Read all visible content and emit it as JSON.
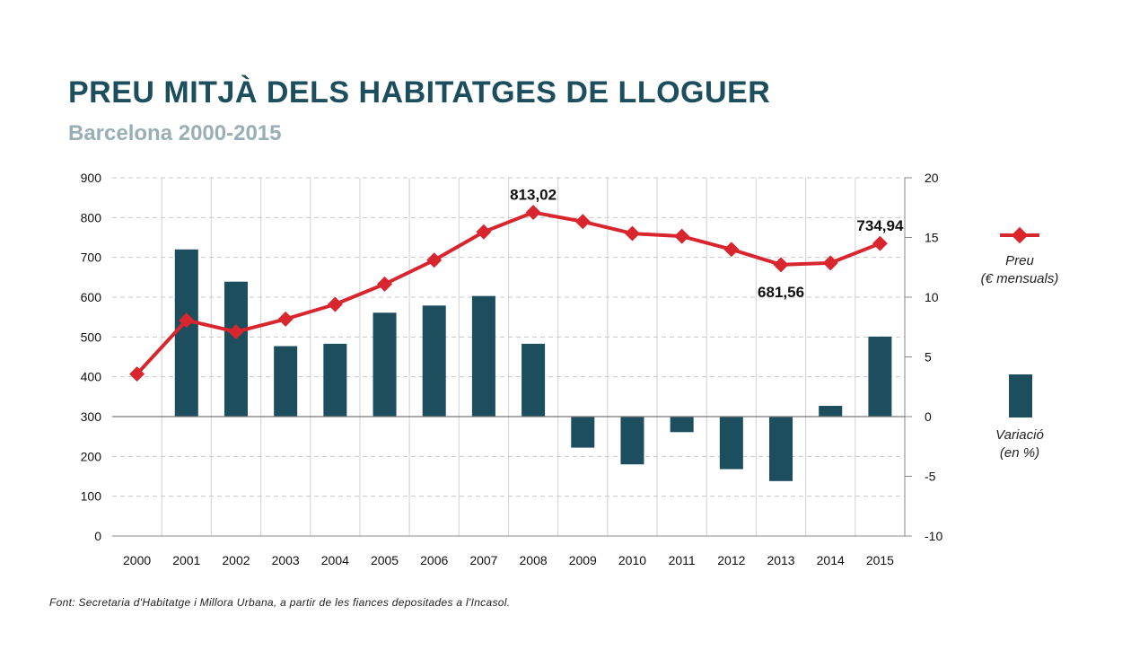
{
  "title": "PREU MITJÀ DELS HABITATGES DE LLOGUER",
  "subtitle": "Barcelona 2000-2015",
  "source": "Font: Secretaria d'Habitatge i Millora Urbana, a partir de les fiances depositades a l'Incasol.",
  "colors": {
    "line": "#d9262e",
    "bar": "#1c4e5e",
    "title": "#1c4e5e",
    "subtitle": "#9aaeb5"
  },
  "legend": {
    "line_label_1": "Preu",
    "line_label_2": "(€ mensuals)",
    "bar_label_1": "Variació",
    "bar_label_2": "(en %)"
  },
  "chart_data": {
    "type": "bar+line",
    "categories": [
      "2000",
      "2001",
      "2002",
      "2003",
      "2004",
      "2005",
      "2006",
      "2007",
      "2008",
      "2009",
      "2010",
      "2011",
      "2012",
      "2013",
      "2014",
      "2015"
    ],
    "series": [
      {
        "name": "Preu (€ mensuals)",
        "type": "line",
        "axis": "left",
        "values": [
          407,
          542,
          513,
          545,
          582,
          633,
          693,
          764,
          813.02,
          790,
          760,
          753,
          720,
          681.56,
          686,
          734.94
        ]
      },
      {
        "name": "Variació (en %)",
        "type": "bar",
        "axis": "right",
        "values": [
          null,
          14.0,
          11.3,
          5.9,
          6.1,
          8.7,
          9.3,
          10.1,
          6.1,
          -2.6,
          -4.0,
          -1.3,
          -4.4,
          -5.4,
          0.9,
          6.7
        ]
      }
    ],
    "annotations": [
      {
        "category": "2008",
        "label": "813,02",
        "value": 813.02,
        "position": "above"
      },
      {
        "category": "2013",
        "label": "681,56",
        "value": 681.56,
        "position": "below"
      },
      {
        "category": "2015",
        "label": "734,94",
        "value": 734.94,
        "position": "above"
      }
    ],
    "left_axis": {
      "ylim": [
        0,
        900
      ],
      "ticks": [
        0,
        100,
        200,
        300,
        400,
        500,
        600,
        700,
        800,
        900
      ]
    },
    "right_axis": {
      "ylim": [
        -10,
        20
      ],
      "ticks": [
        -10,
        -5,
        0,
        5,
        10,
        15,
        20
      ]
    },
    "grid": true,
    "legend_position": "right"
  }
}
